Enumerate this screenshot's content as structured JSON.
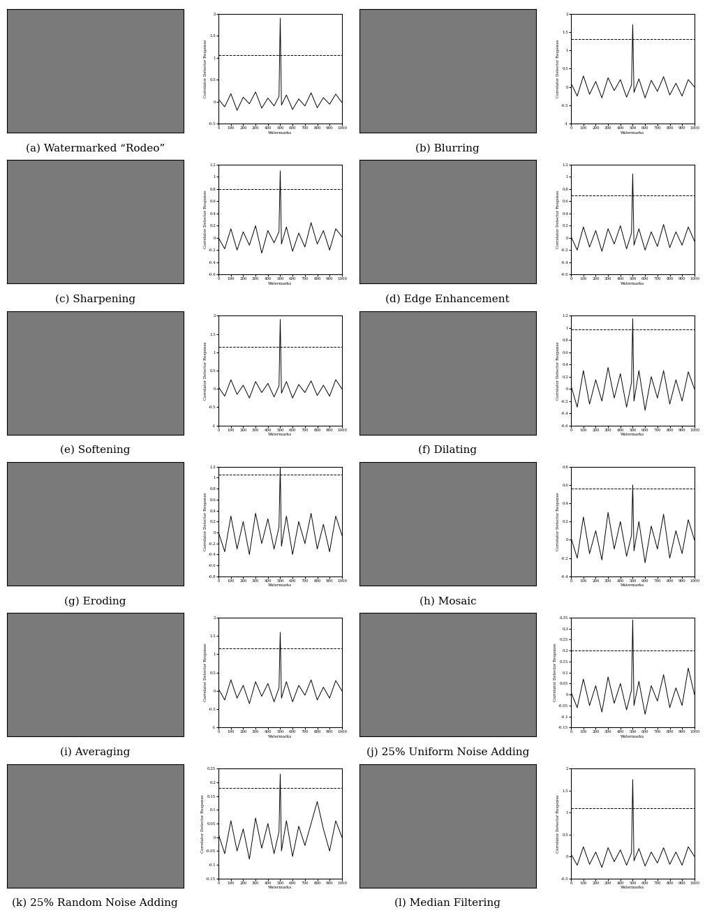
{
  "chart_data": [
    {
      "type": "line",
      "title": "(a) Watermarked “Rodeo”",
      "x_label": "Watermarks",
      "y_label": "Correlator Detector Response",
      "x": [
        0,
        50,
        100,
        150,
        200,
        250,
        300,
        350,
        400,
        450,
        490,
        500,
        510,
        550,
        600,
        650,
        700,
        750,
        800,
        850,
        900,
        950,
        1000
      ],
      "values": [
        0.05,
        -0.12,
        0.18,
        -0.2,
        0.1,
        -0.05,
        0.22,
        -0.15,
        0.08,
        -0.1,
        0.12,
        1.9,
        -0.08,
        0.15,
        -0.18,
        0.06,
        -0.1,
        0.2,
        -0.14,
        0.09,
        -0.06,
        0.17,
        -0.02
      ],
      "threshold": 1.05,
      "color": "#000000",
      "line_style": "solid",
      "xlim": [
        0,
        1000
      ],
      "ylim": [
        -0.5,
        2
      ],
      "xticks": [
        0,
        100,
        200,
        300,
        400,
        500,
        600,
        700,
        800,
        900,
        1000
      ],
      "yticks": [
        -0.5,
        0,
        0.5,
        1,
        1.5,
        2
      ]
    },
    {
      "type": "line",
      "title": "(b) Blurring",
      "x_label": "Watermarks",
      "y_label": "Correlator Detector Response",
      "x": [
        0,
        50,
        100,
        150,
        200,
        250,
        300,
        350,
        400,
        450,
        490,
        500,
        510,
        550,
        600,
        650,
        700,
        750,
        800,
        850,
        900,
        950,
        1000
      ],
      "values": [
        0.1,
        -0.25,
        0.3,
        -0.2,
        0.15,
        -0.3,
        0.25,
        -0.1,
        0.2,
        -0.28,
        0.05,
        1.7,
        -0.15,
        0.22,
        -0.3,
        0.18,
        -0.12,
        0.28,
        -0.22,
        0.1,
        -0.25,
        0.2,
        0.0
      ],
      "threshold": 1.3,
      "color": "#000000",
      "line_style": "solid",
      "xlim": [
        0,
        1000
      ],
      "ylim": [
        -1,
        2
      ],
      "xticks": [
        0,
        100,
        200,
        300,
        400,
        500,
        600,
        700,
        800,
        900,
        1000
      ],
      "yticks": [
        -1,
        -0.5,
        0,
        0.5,
        1,
        1.5,
        2
      ]
    },
    {
      "type": "line",
      "title": "(c) Sharpening",
      "x_label": "Watermarks",
      "y_label": "Correlator Detector Response",
      "x": [
        0,
        50,
        100,
        150,
        200,
        250,
        300,
        350,
        400,
        450,
        490,
        500,
        510,
        550,
        600,
        650,
        700,
        750,
        800,
        850,
        900,
        950,
        1000
      ],
      "values": [
        0.0,
        -0.18,
        0.15,
        -0.2,
        0.1,
        -0.12,
        0.2,
        -0.25,
        0.12,
        -0.08,
        0.1,
        1.1,
        -0.1,
        0.18,
        -0.22,
        0.08,
        -0.15,
        0.25,
        -0.1,
        0.12,
        -0.2,
        0.15,
        0.02
      ],
      "threshold": 0.8,
      "color": "#000000",
      "line_style": "solid",
      "xlim": [
        0,
        1000
      ],
      "ylim": [
        -0.6,
        1.2
      ],
      "xticks": [
        0,
        100,
        200,
        300,
        400,
        500,
        600,
        700,
        800,
        900,
        1000
      ],
      "yticks": [
        -0.6,
        -0.4,
        -0.2,
        0,
        0.2,
        0.4,
        0.6,
        0.8,
        1,
        1.2
      ]
    },
    {
      "type": "line",
      "title": "(d) Edge Enhancement",
      "x_label": "Watermarks",
      "y_label": "Correlator Detector Response",
      "x": [
        0,
        50,
        100,
        150,
        200,
        250,
        300,
        350,
        400,
        450,
        490,
        500,
        510,
        550,
        600,
        650,
        700,
        750,
        800,
        850,
        900,
        950,
        1000
      ],
      "values": [
        0.02,
        -0.2,
        0.18,
        -0.15,
        0.12,
        -0.22,
        0.15,
        -0.1,
        0.2,
        -0.18,
        0.08,
        1.05,
        -0.12,
        0.15,
        -0.2,
        0.1,
        -0.14,
        0.22,
        -0.16,
        0.1,
        -0.12,
        0.18,
        -0.05
      ],
      "threshold": 0.7,
      "color": "#000000",
      "line_style": "solid",
      "xlim": [
        0,
        1000
      ],
      "ylim": [
        -0.6,
        1.2
      ],
      "xticks": [
        0,
        100,
        200,
        300,
        400,
        500,
        600,
        700,
        800,
        900,
        1000
      ],
      "yticks": [
        -0.6,
        -0.4,
        -0.2,
        0,
        0.2,
        0.4,
        0.6,
        0.8,
        1,
        1.2
      ]
    },
    {
      "type": "line",
      "title": "(e) Softening",
      "x_label": "Watermarks",
      "y_label": "Correlator Detector Response",
      "x": [
        0,
        50,
        100,
        150,
        200,
        250,
        300,
        350,
        400,
        450,
        490,
        500,
        510,
        550,
        600,
        650,
        700,
        750,
        800,
        850,
        900,
        950,
        1000
      ],
      "values": [
        0.05,
        -0.2,
        0.25,
        -0.15,
        0.1,
        -0.25,
        0.2,
        -0.1,
        0.15,
        -0.22,
        0.08,
        1.9,
        -0.12,
        0.2,
        -0.25,
        0.12,
        -0.1,
        0.22,
        -0.18,
        0.1,
        -0.2,
        0.25,
        0.0
      ],
      "threshold": 1.15,
      "color": "#000000",
      "line_style": "solid",
      "xlim": [
        0,
        1000
      ],
      "ylim": [
        -1,
        2
      ],
      "xticks": [
        0,
        100,
        200,
        300,
        400,
        500,
        600,
        700,
        800,
        900,
        1000
      ],
      "yticks": [
        -1,
        -0.5,
        0,
        0.5,
        1,
        1.5,
        2
      ]
    },
    {
      "type": "line",
      "title": "(f) Dilating",
      "x_label": "Watermarks",
      "y_label": "Correlator Detector Response",
      "x": [
        0,
        50,
        100,
        150,
        200,
        250,
        300,
        350,
        400,
        450,
        490,
        500,
        510,
        550,
        600,
        650,
        700,
        750,
        800,
        850,
        900,
        950,
        1000
      ],
      "values": [
        0.05,
        -0.3,
        0.3,
        -0.25,
        0.15,
        -0.2,
        0.35,
        -0.15,
        0.25,
        -0.3,
        0.1,
        1.15,
        -0.2,
        0.3,
        -0.35,
        0.2,
        -0.15,
        0.3,
        -0.25,
        0.15,
        -0.2,
        0.28,
        0.0
      ],
      "threshold": 0.98,
      "color": "#000000",
      "line_style": "solid",
      "xlim": [
        0,
        1000
      ],
      "ylim": [
        -0.6,
        1.2
      ],
      "xticks": [
        0,
        100,
        200,
        300,
        400,
        500,
        600,
        700,
        800,
        900,
        1000
      ],
      "yticks": [
        -0.6,
        -0.4,
        -0.2,
        0,
        0.2,
        0.4,
        0.6,
        0.8,
        1,
        1.2
      ]
    },
    {
      "type": "line",
      "title": "(g) Eroding",
      "x_label": "Watermarks",
      "y_label": "Correlator Detector Response",
      "x": [
        0,
        50,
        100,
        150,
        200,
        250,
        300,
        350,
        400,
        450,
        490,
        500,
        510,
        550,
        600,
        650,
        700,
        750,
        800,
        850,
        900,
        950,
        1000
      ],
      "values": [
        0.0,
        -0.35,
        0.3,
        -0.3,
        0.2,
        -0.4,
        0.35,
        -0.2,
        0.25,
        -0.3,
        0.1,
        1.2,
        -0.25,
        0.3,
        -0.4,
        0.2,
        -0.2,
        0.35,
        -0.3,
        0.15,
        -0.35,
        0.3,
        -0.05
      ],
      "threshold": 1.05,
      "color": "#000000",
      "line_style": "solid",
      "xlim": [
        0,
        1000
      ],
      "ylim": [
        -0.8,
        1.2
      ],
      "xticks": [
        0,
        100,
        200,
        300,
        400,
        500,
        600,
        700,
        800,
        900,
        1000
      ],
      "yticks": [
        -0.8,
        -0.6,
        -0.4,
        -0.2,
        0,
        0.2,
        0.4,
        0.6,
        0.8,
        1,
        1.2
      ]
    },
    {
      "type": "line",
      "title": "(h) Mosaic",
      "x_label": "Watermarks",
      "y_label": "Correlator Detector Response",
      "x": [
        0,
        50,
        100,
        150,
        200,
        250,
        300,
        350,
        400,
        450,
        490,
        500,
        510,
        550,
        600,
        650,
        700,
        750,
        800,
        850,
        900,
        950,
        1000
      ],
      "values": [
        0.02,
        -0.2,
        0.25,
        -0.15,
        0.1,
        -0.22,
        0.3,
        -0.1,
        0.2,
        -0.18,
        0.05,
        0.6,
        -0.12,
        0.2,
        -0.25,
        0.15,
        -0.1,
        0.28,
        -0.2,
        0.1,
        -0.15,
        0.22,
        0.0
      ],
      "threshold": 0.56,
      "color": "#000000",
      "line_style": "solid",
      "xlim": [
        0,
        1000
      ],
      "ylim": [
        -0.4,
        0.8
      ],
      "xticks": [
        0,
        100,
        200,
        300,
        400,
        500,
        600,
        700,
        800,
        900,
        1000
      ],
      "yticks": [
        -0.4,
        -0.2,
        0,
        0.2,
        0.4,
        0.6,
        0.8
      ]
    },
    {
      "type": "line",
      "title": "(i) Averaging",
      "x_label": "Watermarks",
      "y_label": "Correlator Detector Response",
      "x": [
        0,
        50,
        100,
        150,
        200,
        250,
        300,
        350,
        400,
        450,
        490,
        500,
        510,
        550,
        600,
        650,
        700,
        750,
        800,
        850,
        900,
        950,
        1000
      ],
      "values": [
        0.05,
        -0.25,
        0.3,
        -0.2,
        0.15,
        -0.35,
        0.25,
        -0.15,
        0.2,
        -0.3,
        0.08,
        1.6,
        -0.2,
        0.25,
        -0.3,
        0.15,
        -0.12,
        0.3,
        -0.25,
        0.1,
        -0.2,
        0.28,
        0.0
      ],
      "threshold": 1.15,
      "color": "#000000",
      "line_style": "solid",
      "xlim": [
        0,
        1000
      ],
      "ylim": [
        -1,
        2
      ],
      "xticks": [
        0,
        100,
        200,
        300,
        400,
        500,
        600,
        700,
        800,
        900,
        1000
      ],
      "yticks": [
        -1,
        -0.5,
        0,
        0.5,
        1,
        1.5,
        2
      ]
    },
    {
      "type": "line",
      "title": "(j) 25% Uniform Noise Adding",
      "x_label": "Watermarks",
      "y_label": "Correlator Detector Response",
      "x": [
        0,
        50,
        100,
        150,
        200,
        250,
        300,
        350,
        400,
        450,
        490,
        500,
        510,
        550,
        600,
        650,
        700,
        750,
        800,
        850,
        900,
        950,
        1000
      ],
      "values": [
        0.01,
        -0.06,
        0.07,
        -0.05,
        0.04,
        -0.08,
        0.08,
        -0.04,
        0.05,
        -0.07,
        0.02,
        0.34,
        -0.05,
        0.06,
        -0.09,
        0.04,
        -0.03,
        0.09,
        -0.06,
        0.03,
        -0.05,
        0.12,
        0.0
      ],
      "threshold": 0.2,
      "color": "#000000",
      "line_style": "solid",
      "xlim": [
        0,
        1000
      ],
      "ylim": [
        -0.15,
        0.35
      ],
      "xticks": [
        0,
        100,
        200,
        300,
        400,
        500,
        600,
        700,
        800,
        900,
        1000
      ],
      "yticks": [
        -0.15,
        -0.1,
        -0.05,
        0,
        0.05,
        0.1,
        0.15,
        0.2,
        0.25,
        0.3,
        0.35
      ]
    },
    {
      "type": "line",
      "title": "(k) 25% Random Noise Adding",
      "x_label": "Watermarks",
      "y_label": "Correlator Detector Response",
      "x": [
        0,
        50,
        100,
        150,
        200,
        250,
        300,
        350,
        400,
        450,
        490,
        500,
        510,
        550,
        600,
        650,
        700,
        750,
        800,
        850,
        900,
        950,
        1000
      ],
      "values": [
        0.01,
        -0.06,
        0.06,
        -0.05,
        0.03,
        -0.08,
        0.07,
        -0.04,
        0.05,
        -0.06,
        0.02,
        0.23,
        -0.05,
        0.06,
        -0.07,
        0.04,
        -0.03,
        0.05,
        0.13,
        0.03,
        -0.05,
        0.06,
        0.0
      ],
      "threshold": 0.18,
      "color": "#000000",
      "line_style": "solid",
      "xlim": [
        0,
        1000
      ],
      "ylim": [
        -0.15,
        0.25
      ],
      "xticks": [
        0,
        100,
        200,
        300,
        400,
        500,
        600,
        700,
        800,
        900,
        1000
      ],
      "yticks": [
        -0.15,
        -0.1,
        -0.05,
        0,
        0.05,
        0.1,
        0.15,
        0.2,
        0.25
      ]
    },
    {
      "type": "line",
      "title": "(l) Median Filtering",
      "x_label": "Watermarks",
      "y_label": "Correlator Detector Response",
      "x": [
        0,
        50,
        100,
        150,
        200,
        250,
        300,
        350,
        400,
        450,
        490,
        500,
        510,
        550,
        600,
        650,
        700,
        750,
        800,
        850,
        900,
        950,
        1000
      ],
      "values": [
        0.05,
        -0.2,
        0.22,
        -0.18,
        0.1,
        -0.25,
        0.2,
        -0.12,
        0.15,
        -0.2,
        0.08,
        1.75,
        -0.1,
        0.18,
        -0.22,
        0.1,
        -0.15,
        0.2,
        -0.18,
        0.1,
        -0.2,
        0.22,
        0.0
      ],
      "threshold": 1.1,
      "color": "#000000",
      "line_style": "solid",
      "xlim": [
        0,
        1000
      ],
      "ylim": [
        -0.5,
        2
      ],
      "xticks": [
        0,
        100,
        200,
        300,
        400,
        500,
        600,
        700,
        800,
        900,
        1000
      ],
      "yticks": [
        -0.5,
        0,
        0.5,
        1,
        1.5,
        2
      ]
    }
  ]
}
